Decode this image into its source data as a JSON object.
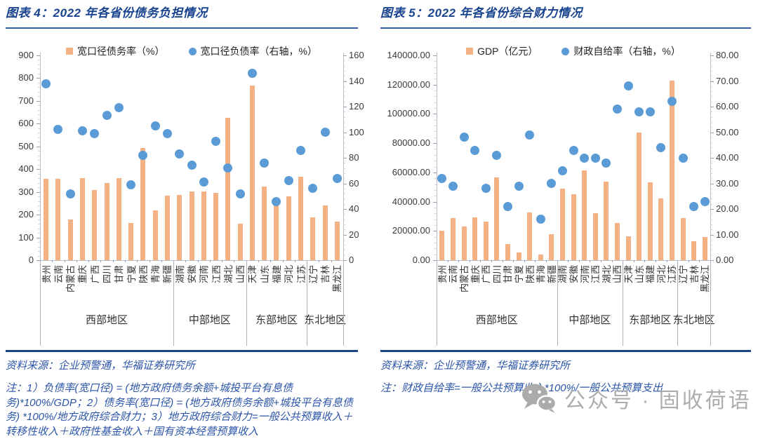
{
  "page": {
    "background": "#ffffff"
  },
  "colors": {
    "bar_orange": "#f4b183",
    "dot_blue": "#5b9bd5",
    "title_blue": "#17428e",
    "note_blue": "#2c55a8",
    "rule_blue": "#2e5fa8",
    "watermark_gray": "#adadad"
  },
  "watermark": {
    "icon": "wechat-icon",
    "text": "公众号 · 固收荷语"
  },
  "charts": [
    {
      "title": "图表 4：2022 年各省份债务负担情况",
      "source": "资料来源：企业预警通，华福证券研究所",
      "note": "注：1）负债率(宽口径) = (地方政府债务余额+城投平台有息债务)*100%/GDP；2）债务率(宽口径) = (地方政府债务余额+城投平台有息债务) *100%/地方政府综合财力；3）地方政府综合财力=一般公共预算收入＋转移性收入＋政府性基金收入＋国有资本经营预算收入",
      "chart_data": {
        "type": "bar",
        "legend_position": "top",
        "grid": false,
        "categories": [
          "贵州",
          "云南",
          "内蒙古",
          "重庆",
          "广西",
          "四川",
          "甘肃",
          "宁夏",
          "陕西",
          "青海",
          "新疆",
          "湖南",
          "安徽",
          "河南",
          "江西",
          "湖北",
          "山西",
          "天津",
          "山东",
          "福建",
          "河北",
          "江苏",
          "辽宁",
          "吉林",
          "黑龙江"
        ],
        "region_groups": [
          {
            "label": "西部地区",
            "count": 11
          },
          {
            "label": "中部地区",
            "count": 6
          },
          {
            "label": "东部地区",
            "count": 5
          },
          {
            "label": "东北地区",
            "count": 3
          }
        ],
        "series": [
          {
            "name": "宽口径债务率（%）",
            "type": "bar",
            "axis": "left",
            "color": "#f4b183",
            "values": [
              356,
              358,
              179,
              361,
              307,
              340,
              362,
              164,
              494,
              218,
              285,
              287,
              302,
              303,
              295,
              627,
              160,
              767,
              325,
              252,
              281,
              368,
              188,
              239,
              171
            ]
          },
          {
            "name": "宽口径负债率（右轴，%）",
            "type": "scatter",
            "axis": "right",
            "color": "#5b9bd5",
            "values": [
              138,
              102,
              52,
              101,
              99,
              113,
              119,
              59,
              82,
              105,
              99,
              83,
              74,
              61,
              93,
              72,
              52,
              146,
              76,
              46,
              62,
              86,
              56,
              100,
              64
            ]
          }
        ],
        "left_axis": {
          "min": 0,
          "max": 900,
          "step": 100,
          "decimals": 0
        },
        "right_axis": {
          "min": 0,
          "max": 160,
          "step": 20,
          "decimals": 0
        }
      }
    },
    {
      "title": "图表 5：2022 年各省份综合财力情况",
      "source": "资料来源：企业预警通，华福证券研究所",
      "note": "注：财政自给率=一般公共预算收入*100%/一般公共预算支出",
      "chart_data": {
        "type": "bar",
        "legend_position": "top",
        "grid": false,
        "categories": [
          "贵州",
          "云南",
          "内蒙古",
          "重庆",
          "广西",
          "四川",
          "甘肃",
          "宁夏",
          "陕西",
          "青海",
          "新疆",
          "湖南",
          "安徽",
          "河南",
          "江西",
          "湖北",
          "山西",
          "天津",
          "山东",
          "福建",
          "河北",
          "江苏",
          "辽宁",
          "吉林",
          "黑龙江"
        ],
        "region_groups": [
          {
            "label": "西部地区",
            "count": 11
          },
          {
            "label": "中部地区",
            "count": 6
          },
          {
            "label": "东部地区",
            "count": 5
          },
          {
            "label": "东北地区",
            "count": 3
          }
        ],
        "series": [
          {
            "name": "GDP（亿元）",
            "type": "bar",
            "axis": "left",
            "color": "#f4b183",
            "values": [
              20165,
              28954,
              23159,
              29129,
              26301,
              56750,
              11202,
              5070,
              32773,
              3610,
              17741,
              48670,
              45045,
              61345,
              32075,
              53735,
              25643,
              16311,
              87435,
              53110,
              42370,
              122876,
              28975,
              13070,
              15901
            ]
          },
          {
            "name": "财政自给率（右轴，%）",
            "type": "scatter",
            "axis": "right",
            "color": "#5b9bd5",
            "values": [
              32,
              29,
              48,
              43,
              28,
              41,
              21,
              29,
              49,
              16,
              30,
              35,
              43,
              40,
              40,
              38,
              59,
              68,
              58,
              58,
              44,
              62,
              40,
              21,
              23
            ]
          }
        ],
        "left_axis": {
          "min": 0,
          "max": 140000,
          "step": 20000,
          "decimals": 2
        },
        "right_axis": {
          "min": 0,
          "max": 80,
          "step": 10,
          "decimals": 2
        }
      }
    }
  ]
}
